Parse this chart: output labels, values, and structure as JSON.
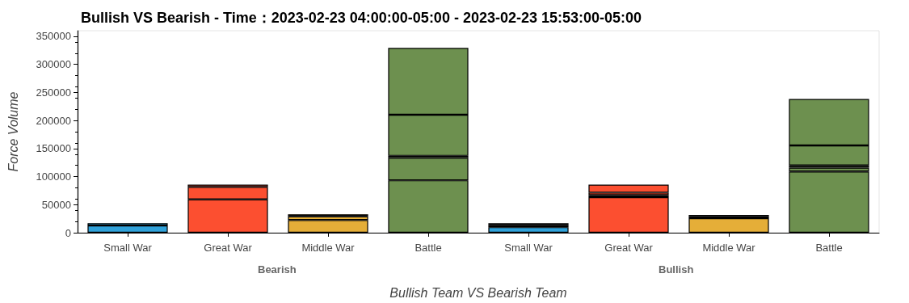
{
  "chart_data": {
    "type": "bar",
    "stacked": true,
    "title": "Bullish VS Bearish - Time：2023-02-23 04:00:00-05:00 - 2023-02-23 15:53:00-05:00",
    "xlabel": "Bullish Team VS Bearish Team",
    "ylabel": "Force Volume",
    "annotations": [
      "Bearish",
      "Bullish"
    ],
    "categories": [
      "Small War",
      "Great War",
      "Middle War",
      "Battle",
      "Small War",
      "Great War",
      "Middle War",
      "Battle"
    ],
    "series": [
      {
        "colors": [
          "#30a2da",
          "#fc4f30",
          "#e5ae38",
          "#6d904f",
          "#30a2da",
          "#fc4f30",
          "#e5ae38",
          "#6d904f"
        ],
        "values": [
          12800,
          59500,
          22600,
          93400,
          9900,
          63400,
          25800,
          109000
        ]
      },
      {
        "colors": [
          "#30a2da",
          "#fc4f30",
          "#e5ae38",
          "#6d904f",
          "#30a2da",
          "#fc4f30",
          "#e5ae38",
          "#6d904f"
        ],
        "values": [
          4100,
          22100,
          6600,
          40000,
          3500,
          3500,
          3400,
          6900
        ]
      },
      {
        "colors": [
          "#30a2da",
          "#fc4f30",
          "#e5ae38",
          "#6d904f",
          "#30a2da",
          "#fc4f30",
          "#e5ae38",
          "#6d904f"
        ],
        "values": [
          null,
          4100,
          3600,
          3600,
          3400,
          4500,
          2500,
          4000
        ]
      },
      {
        "colors": [
          "#30a2da",
          "#fc4f30",
          "#e5ae38",
          "#6d904f",
          "#30a2da",
          "#fc4f30",
          "#e5ae38",
          "#6d904f"
        ],
        "values": [
          null,
          null,
          null,
          73300,
          null,
          14300,
          null,
          35700
        ]
      },
      {
        "colors": [
          "#30a2da",
          "#fc4f30",
          "#e5ae38",
          "#6d904f",
          "#30a2da",
          "#fc4f30",
          "#e5ae38",
          "#6d904f"
        ],
        "values": [
          null,
          null,
          null,
          119000,
          null,
          null,
          null,
          82700
        ]
      }
    ],
    "ylim": [
      0,
      360000
    ],
    "yticks": [
      0,
      50000,
      100000,
      150000,
      200000,
      250000,
      300000,
      350000
    ],
    "grid": false
  }
}
